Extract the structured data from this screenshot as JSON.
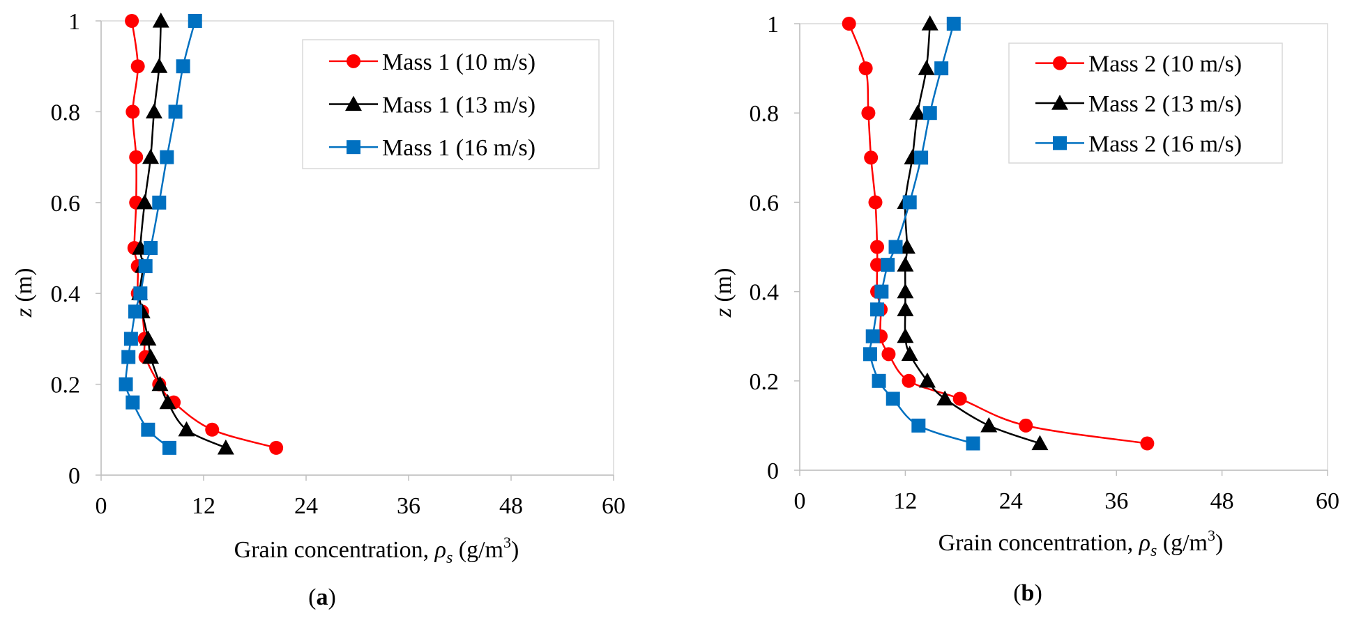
{
  "chart_data": [
    {
      "type": "line",
      "panel": "a",
      "panel_label": "a",
      "xlabel_prefix": "Grain concentration, ",
      "xlabel_symbol": "ρ",
      "xlabel_subscript": "s",
      "xlabel_unit": " (g/m",
      "xlabel_unit_sup": "3",
      "xlabel_close": ")",
      "ylabel_var": "z",
      "ylabel_unit": " (m)",
      "xlim": [
        0,
        60
      ],
      "ylim": [
        0,
        1
      ],
      "xticks": [
        "0",
        "12",
        "24",
        "36",
        "48",
        "60"
      ],
      "yticks": [
        "0",
        "0.2",
        "0.4",
        "0.6",
        "0.8",
        "1"
      ],
      "legend_position": "top-right",
      "series": [
        {
          "name": "Mass 1 (10 m/s)",
          "color": "#ff0000",
          "marker": "circle",
          "points": [
            [
              20.5,
              0.06
            ],
            [
              13.0,
              0.1
            ],
            [
              8.5,
              0.16
            ],
            [
              6.8,
              0.2
            ],
            [
              5.2,
              0.26
            ],
            [
              5.1,
              0.3
            ],
            [
              4.8,
              0.36
            ],
            [
              4.3,
              0.4
            ],
            [
              4.3,
              0.46
            ],
            [
              3.9,
              0.5
            ],
            [
              4.1,
              0.6
            ],
            [
              4.1,
              0.7
            ],
            [
              3.7,
              0.8
            ],
            [
              4.3,
              0.9
            ],
            [
              3.6,
              1.0
            ]
          ]
        },
        {
          "name": "Mass 1 (13 m/s)",
          "color": "#000000",
          "marker": "triangle",
          "points": [
            [
              14.6,
              0.06
            ],
            [
              10.0,
              0.1
            ],
            [
              7.8,
              0.16
            ],
            [
              6.9,
              0.2
            ],
            [
              5.8,
              0.26
            ],
            [
              5.5,
              0.3
            ],
            [
              4.8,
              0.36
            ],
            [
              4.5,
              0.4
            ],
            [
              4.9,
              0.46
            ],
            [
              4.6,
              0.5
            ],
            [
              5.1,
              0.6
            ],
            [
              5.8,
              0.7
            ],
            [
              6.2,
              0.8
            ],
            [
              6.8,
              0.9
            ],
            [
              7.0,
              1.0
            ]
          ]
        },
        {
          "name": "Mass 1 (16 m/s)",
          "color": "#0070c0",
          "marker": "square",
          "points": [
            [
              8.0,
              0.06
            ],
            [
              5.5,
              0.1
            ],
            [
              3.7,
              0.16
            ],
            [
              2.9,
              0.2
            ],
            [
              3.2,
              0.26
            ],
            [
              3.5,
              0.3
            ],
            [
              4.0,
              0.36
            ],
            [
              4.6,
              0.4
            ],
            [
              5.2,
              0.46
            ],
            [
              5.8,
              0.5
            ],
            [
              6.8,
              0.6
            ],
            [
              7.7,
              0.7
            ],
            [
              8.7,
              0.8
            ],
            [
              9.6,
              0.9
            ],
            [
              11.0,
              1.0
            ]
          ]
        }
      ],
      "legend": [
        "Mass 1 (10 m/s)",
        "Mass 1 (13 m/s)",
        "Mass 1 (16 m/s)"
      ]
    },
    {
      "type": "line",
      "panel": "b",
      "panel_label": "b",
      "xlabel_prefix": "Grain concentration, ",
      "xlabel_symbol": "ρ",
      "xlabel_subscript": "s",
      "xlabel_unit": " (g/m",
      "xlabel_unit_sup": "3",
      "xlabel_close": ")",
      "ylabel_var": "z",
      "ylabel_unit": " (m)",
      "xlim": [
        0,
        60
      ],
      "ylim": [
        0,
        1
      ],
      "xticks": [
        "0",
        "12",
        "24",
        "36",
        "48",
        "60"
      ],
      "yticks": [
        "0",
        "0.2",
        "0.4",
        "0.6",
        "0.8",
        "1"
      ],
      "legend_position": "top-right",
      "series": [
        {
          "name": "Mass 2 (10 m/s)",
          "color": "#ff0000",
          "marker": "circle",
          "points": [
            [
              39.5,
              0.06
            ],
            [
              25.7,
              0.1
            ],
            [
              18.2,
              0.16
            ],
            [
              12.4,
              0.2
            ],
            [
              10.1,
              0.26
            ],
            [
              9.2,
              0.3
            ],
            [
              9.2,
              0.36
            ],
            [
              8.8,
              0.4
            ],
            [
              8.8,
              0.46
            ],
            [
              8.8,
              0.5
            ],
            [
              8.6,
              0.6
            ],
            [
              8.1,
              0.7
            ],
            [
              7.8,
              0.8
            ],
            [
              7.5,
              0.9
            ],
            [
              5.6,
              1.0
            ]
          ]
        },
        {
          "name": "Mass 2 (13 m/s)",
          "color": "#000000",
          "marker": "triangle",
          "points": [
            [
              27.3,
              0.06
            ],
            [
              21.5,
              0.1
            ],
            [
              16.5,
              0.16
            ],
            [
              14.5,
              0.2
            ],
            [
              12.5,
              0.26
            ],
            [
              12.0,
              0.3
            ],
            [
              12.0,
              0.36
            ],
            [
              12.0,
              0.4
            ],
            [
              12.0,
              0.46
            ],
            [
              12.2,
              0.5
            ],
            [
              12.0,
              0.6
            ],
            [
              12.8,
              0.7
            ],
            [
              13.4,
              0.8
            ],
            [
              14.4,
              0.9
            ],
            [
              14.8,
              1.0
            ]
          ]
        },
        {
          "name": "Mass 2 (16 m/s)",
          "color": "#0070c0",
          "marker": "square",
          "points": [
            [
              19.7,
              0.06
            ],
            [
              13.5,
              0.1
            ],
            [
              10.6,
              0.16
            ],
            [
              9.0,
              0.2
            ],
            [
              8.0,
              0.26
            ],
            [
              8.3,
              0.3
            ],
            [
              8.8,
              0.36
            ],
            [
              9.3,
              0.4
            ],
            [
              10.0,
              0.46
            ],
            [
              10.9,
              0.5
            ],
            [
              12.5,
              0.6
            ],
            [
              13.8,
              0.7
            ],
            [
              14.8,
              0.8
            ],
            [
              16.1,
              0.9
            ],
            [
              17.5,
              1.0
            ]
          ]
        }
      ],
      "legend": [
        "Mass 2 (10 m/s)",
        "Mass 2 (13 m/s)",
        "Mass 2 (16 m/s)"
      ]
    }
  ]
}
